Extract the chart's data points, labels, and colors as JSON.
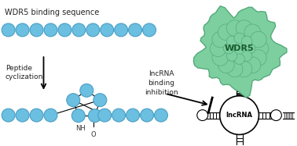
{
  "bg_color": "#ffffff",
  "bead_color": "#6bbfe0",
  "bead_edge_color": "#4a9fc4",
  "wdr5_color": "#7dcfa0",
  "wdr5_edge_color": "#55aa7a",
  "text_wdr5_binding": "WDR5 binding sequence",
  "text_peptide": "Peptide\ncyclization",
  "text_lncrna_inhibition": "lncRNA\nbinding\ninhibition",
  "text_wdr5": "WDR5",
  "text_lncrna": "lncRNA"
}
